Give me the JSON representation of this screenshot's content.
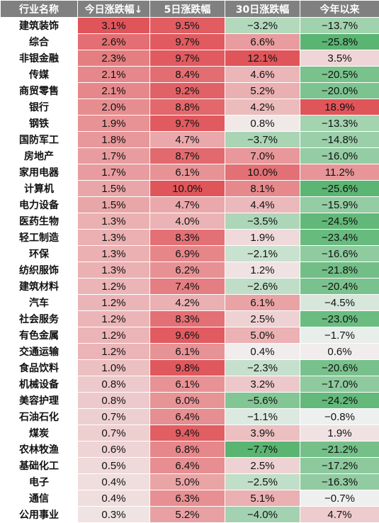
{
  "headers": [
    "行业名称",
    "今日涨跌幅↓",
    "5日涨跌幅",
    "30日涨跌幅",
    "今年以来"
  ],
  "rows": [
    {
      "name": "建筑装饰",
      "today": 3.1,
      "d5": 9.5,
      "d30": -3.2,
      "ytd": -13.7
    },
    {
      "name": "综合",
      "today": 2.6,
      "d5": 9.7,
      "d30": 6.6,
      "ytd": -25.8
    },
    {
      "name": "非银金融",
      "today": 2.3,
      "d5": 9.7,
      "d30": 12.1,
      "ytd": 3.5
    },
    {
      "name": "传媒",
      "today": 2.1,
      "d5": 8.4,
      "d30": 4.6,
      "ytd": -20.5
    },
    {
      "name": "商贸零售",
      "today": 2.1,
      "d5": 9.2,
      "d30": 5.2,
      "ytd": -20.0
    },
    {
      "name": "银行",
      "today": 2.0,
      "d5": 8.8,
      "d30": 4.2,
      "ytd": 18.9
    },
    {
      "name": "钢铁",
      "today": 1.9,
      "d5": 9.7,
      "d30": 0.8,
      "ytd": -13.3
    },
    {
      "name": "国防军工",
      "today": 1.8,
      "d5": 4.7,
      "d30": -3.7,
      "ytd": -14.8
    },
    {
      "name": "房地产",
      "today": 1.7,
      "d5": 8.7,
      "d30": 7.0,
      "ytd": -16.0
    },
    {
      "name": "家用电器",
      "today": 1.7,
      "d5": 6.1,
      "d30": 10.0,
      "ytd": 11.2
    },
    {
      "name": "计算机",
      "today": 1.5,
      "d5": 10.0,
      "d30": 8.1,
      "ytd": -25.6
    },
    {
      "name": "电力设备",
      "today": 1.5,
      "d5": 4.7,
      "d30": 4.4,
      "ytd": -15.9
    },
    {
      "name": "医药生物",
      "today": 1.3,
      "d5": 4.0,
      "d30": -3.5,
      "ytd": -24.5
    },
    {
      "name": "轻工制造",
      "today": 1.3,
      "d5": 8.3,
      "d30": 1.9,
      "ytd": -23.4
    },
    {
      "name": "环保",
      "today": 1.3,
      "d5": 6.9,
      "d30": -2.1,
      "ytd": -16.6
    },
    {
      "name": "纺织服饰",
      "today": 1.3,
      "d5": 6.2,
      "d30": 1.2,
      "ytd": -21.8
    },
    {
      "name": "建筑材料",
      "today": 1.2,
      "d5": 7.4,
      "d30": -2.6,
      "ytd": -20.4
    },
    {
      "name": "汽车",
      "today": 1.2,
      "d5": 4.2,
      "d30": 6.1,
      "ytd": -4.5
    },
    {
      "name": "社会服务",
      "today": 1.2,
      "d5": 8.3,
      "d30": 2.5,
      "ytd": -23.0
    },
    {
      "name": "有色金属",
      "today": 1.2,
      "d5": 9.6,
      "d30": 5.0,
      "ytd": -1.7
    },
    {
      "name": "交通运输",
      "today": 1.2,
      "d5": 6.1,
      "d30": 0.4,
      "ytd": 0.6
    },
    {
      "name": "食品饮料",
      "today": 1.0,
      "d5": 9.8,
      "d30": -2.3,
      "ytd": -20.6
    },
    {
      "name": "机械设备",
      "today": 0.8,
      "d5": 6.1,
      "d30": 3.2,
      "ytd": -17.0
    },
    {
      "name": "美容护理",
      "today": 0.8,
      "d5": 6.0,
      "d30": -5.6,
      "ytd": -24.2
    },
    {
      "name": "石油石化",
      "today": 0.7,
      "d5": 6.4,
      "d30": -1.1,
      "ytd": -0.8
    },
    {
      "name": "煤炭",
      "today": 0.7,
      "d5": 9.4,
      "d30": 3.9,
      "ytd": 1.9
    },
    {
      "name": "农林牧渔",
      "today": 0.6,
      "d5": 6.8,
      "d30": -7.7,
      "ytd": -21.2
    },
    {
      "name": "基础化工",
      "today": 0.5,
      "d5": 6.4,
      "d30": 2.5,
      "ytd": -17.2
    },
    {
      "name": "电子",
      "today": 0.4,
      "d5": 5.0,
      "d30": -2.5,
      "ytd": -16.3
    },
    {
      "name": "通信",
      "today": 0.4,
      "d5": 6.3,
      "d30": 5.1,
      "ytd": -0.7
    },
    {
      "name": "公用事业",
      "today": 0.3,
      "d5": 5.2,
      "d30": -4.0,
      "ytd": 4.7
    }
  ],
  "colors": {
    "header_bg": "#808080",
    "neutral": "#f2f2f2",
    "positive_max": "#e0555a",
    "negative_max": "#5ab572"
  }
}
